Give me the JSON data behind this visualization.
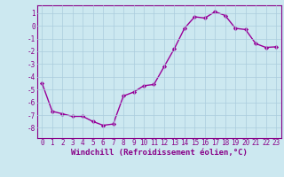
{
  "x": [
    0,
    1,
    2,
    3,
    4,
    5,
    6,
    7,
    8,
    9,
    10,
    11,
    12,
    13,
    14,
    15,
    16,
    17,
    18,
    19,
    20,
    21,
    22,
    23
  ],
  "y": [
    -4.5,
    -6.7,
    -6.9,
    -7.1,
    -7.1,
    -7.5,
    -7.8,
    -7.7,
    -5.5,
    -5.2,
    -4.7,
    -4.6,
    -3.2,
    -1.8,
    -0.2,
    0.7,
    0.6,
    1.1,
    0.8,
    -0.2,
    -0.3,
    -1.4,
    -1.7,
    -1.65
  ],
  "line_color": "#990099",
  "marker": "D",
  "marker_size": 2.2,
  "bg_color": "#cce8f0",
  "grid_color": "#aaccdd",
  "xlabel": "Windchill (Refroidissement éolien,°C)",
  "xlabel_fontsize": 6.5,
  "ylim": [
    -8.8,
    1.6
  ],
  "xlim": [
    -0.5,
    23.5
  ],
  "yticks": [
    1,
    0,
    -1,
    -2,
    -3,
    -4,
    -5,
    -6,
    -7,
    -8
  ],
  "xticks": [
    0,
    1,
    2,
    3,
    4,
    5,
    6,
    7,
    8,
    9,
    10,
    11,
    12,
    13,
    14,
    15,
    16,
    17,
    18,
    19,
    20,
    21,
    22,
    23
  ],
  "tick_fontsize": 5.5,
  "tick_color": "#880088",
  "spine_color": "#880088",
  "line_width": 1.0
}
